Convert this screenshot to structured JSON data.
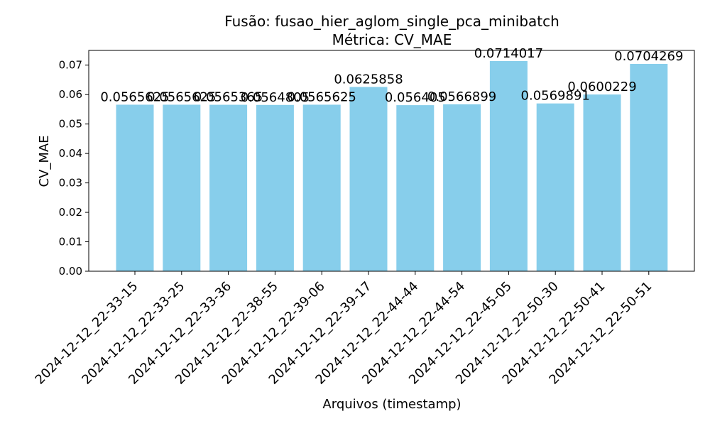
{
  "chart_data": {
    "type": "bar",
    "title": "Fusão: fusao_hier_aglom_single_pca_minibatch",
    "subtitle": "Métrica: CV_MAE",
    "xlabel": "Arquivos (timestamp)",
    "ylabel": "CV_MAE",
    "ylim": [
      0,
      0.075
    ],
    "yticks": [
      0.0,
      0.01,
      0.02,
      0.03,
      0.04,
      0.05,
      0.06,
      0.07
    ],
    "ytick_labels": [
      "0.00",
      "0.01",
      "0.02",
      "0.03",
      "0.04",
      "0.05",
      "0.06",
      "0.07"
    ],
    "categories": [
      "2024-12-12_22-33-15",
      "2024-12-12_22-33-25",
      "2024-12-12_22-33-36",
      "2024-12-12_22-38-55",
      "2024-12-12_22-39-06",
      "2024-12-12_22-39-17",
      "2024-12-12_22-44-44",
      "2024-12-12_22-44-54",
      "2024-12-12_22-45-05",
      "2024-12-12_22-50-30",
      "2024-12-12_22-50-41",
      "2024-12-12_22-50-51"
    ],
    "values": [
      0.0565625,
      0.0565625,
      0.0565365,
      0.0564805,
      0.0565625,
      0.0625858,
      0.056405,
      0.0566899,
      0.0714017,
      0.0569891,
      0.0600229,
      0.0704269
    ],
    "value_labels": [
      "0.0565625",
      "0.0565625",
      "0.0565365",
      "0.0564805",
      "0.0565625",
      "0.0625858",
      "0.056405",
      "0.0566899",
      "0.0714017",
      "0.0569891",
      "0.0600229",
      "0.0704269"
    ],
    "bar_color": "#87ceeb",
    "grid": false,
    "legend": "none"
  }
}
